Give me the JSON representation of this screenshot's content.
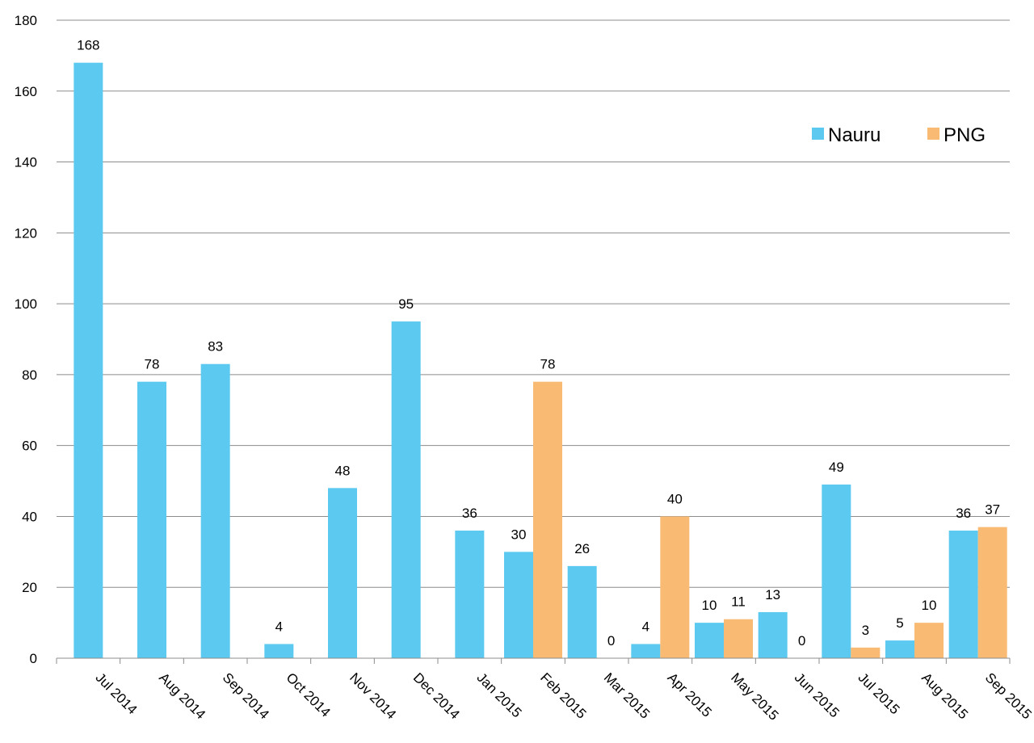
{
  "chart_data": {
    "type": "bar",
    "categories": [
      "Jul 2014",
      "Aug 2014",
      "Sep 2014",
      "Oct 2014",
      "Nov 2014",
      "Dec 2014",
      "Jan 2015",
      "Feb 2015",
      "Mar 2015",
      "Apr 2015",
      "May 2015",
      "Jun 2015",
      "Jul 2015",
      "Aug 2015",
      "Sep 2015"
    ],
    "series": [
      {
        "name": "Nauru",
        "color": "#5BC9F0",
        "values": [
          168,
          78,
          83,
          4,
          48,
          95,
          36,
          30,
          26,
          4,
          10,
          13,
          49,
          5,
          36
        ]
      },
      {
        "name": "PNG",
        "color": "#F9BA74",
        "values": [
          null,
          null,
          null,
          null,
          null,
          null,
          null,
          78,
          0,
          40,
          11,
          0,
          3,
          10,
          37
        ]
      }
    ],
    "ylim": [
      0,
      180
    ],
    "yticks": [
      0,
      20,
      40,
      60,
      80,
      100,
      120,
      140,
      160,
      180
    ],
    "grid": true,
    "legend": "top-right",
    "title": "",
    "xlabel": "",
    "ylabel": ""
  }
}
